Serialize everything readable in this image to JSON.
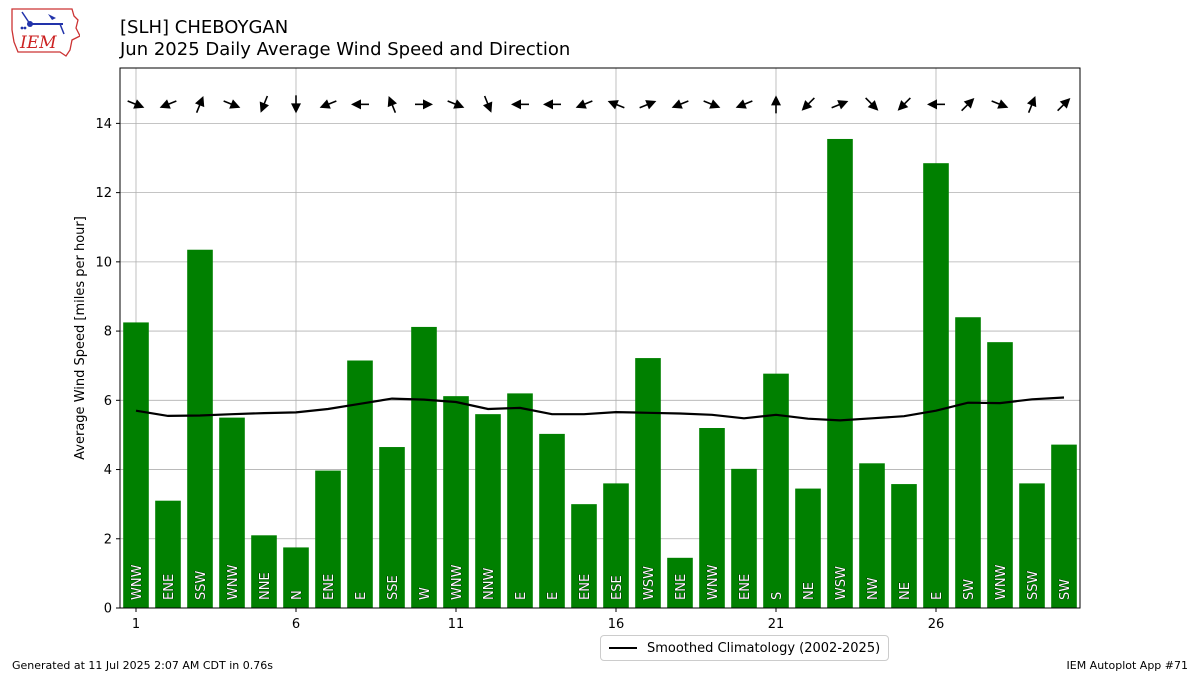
{
  "header": {
    "title_line1": "[SLH] CHEBOYGAN",
    "title_line2": "Jun 2025 Daily Average Wind Speed and Direction"
  },
  "logo": {
    "text": "IEM",
    "icon": "iem-iowa-logo"
  },
  "footer": {
    "generated": "Generated at 11 Jul 2025 2:07 AM CDT in 0.76s",
    "app": "IEM Autoplot App #71"
  },
  "legend": {
    "label": "Smoothed Climatology (2002-2025)"
  },
  "chart_data": {
    "type": "bar",
    "ylabel": "Average Wind Speed [miles per hour]",
    "xlabel": "",
    "xlim": [
      0.5,
      30.5
    ],
    "ylim": [
      0,
      15.6
    ],
    "x_ticks": [
      1,
      6,
      11,
      16,
      21,
      26
    ],
    "y_ticks": [
      0,
      2,
      4,
      6,
      8,
      10,
      12,
      14
    ],
    "grid": true,
    "bar_color": "#008000",
    "clim_color": "#000000",
    "days": [
      1,
      2,
      3,
      4,
      5,
      6,
      7,
      8,
      9,
      10,
      11,
      12,
      13,
      14,
      15,
      16,
      17,
      18,
      19,
      20,
      21,
      22,
      23,
      24,
      25,
      26,
      27,
      28,
      29,
      30
    ],
    "speed": [
      8.25,
      3.1,
      10.35,
      5.5,
      2.1,
      1.75,
      3.97,
      7.15,
      4.65,
      8.12,
      6.12,
      5.6,
      6.2,
      5.03,
      3.0,
      3.6,
      7.22,
      1.45,
      5.2,
      4.02,
      6.77,
      3.45,
      13.55,
      4.18,
      3.58,
      12.85,
      8.4,
      7.68,
      3.6,
      4.72
    ],
    "direction": [
      "WNW",
      "ENE",
      "SSW",
      "WNW",
      "NNE",
      "N",
      "ENE",
      "E",
      "SSE",
      "W",
      "WNW",
      "NNW",
      "E",
      "E",
      "ENE",
      "ESE",
      "WSW",
      "ENE",
      "WNW",
      "ENE",
      "S",
      "NE",
      "WSW",
      "NW",
      "NE",
      "E",
      "SW",
      "WNW",
      "SSW",
      "SW"
    ],
    "direction_degrees": [
      292,
      68,
      202,
      292,
      22,
      0,
      68,
      90,
      158,
      270,
      292,
      338,
      90,
      90,
      68,
      112,
      248,
      68,
      292,
      68,
      180,
      45,
      248,
      315,
      45,
      90,
      225,
      292,
      202,
      225
    ],
    "climatology": [
      5.7,
      5.55,
      5.56,
      5.6,
      5.63,
      5.65,
      5.75,
      5.9,
      6.05,
      6.02,
      5.95,
      5.75,
      5.78,
      5.6,
      5.6,
      5.66,
      5.64,
      5.62,
      5.58,
      5.48,
      5.58,
      5.47,
      5.42,
      5.48,
      5.54,
      5.7,
      5.93,
      5.92,
      6.03,
      6.08
    ]
  }
}
